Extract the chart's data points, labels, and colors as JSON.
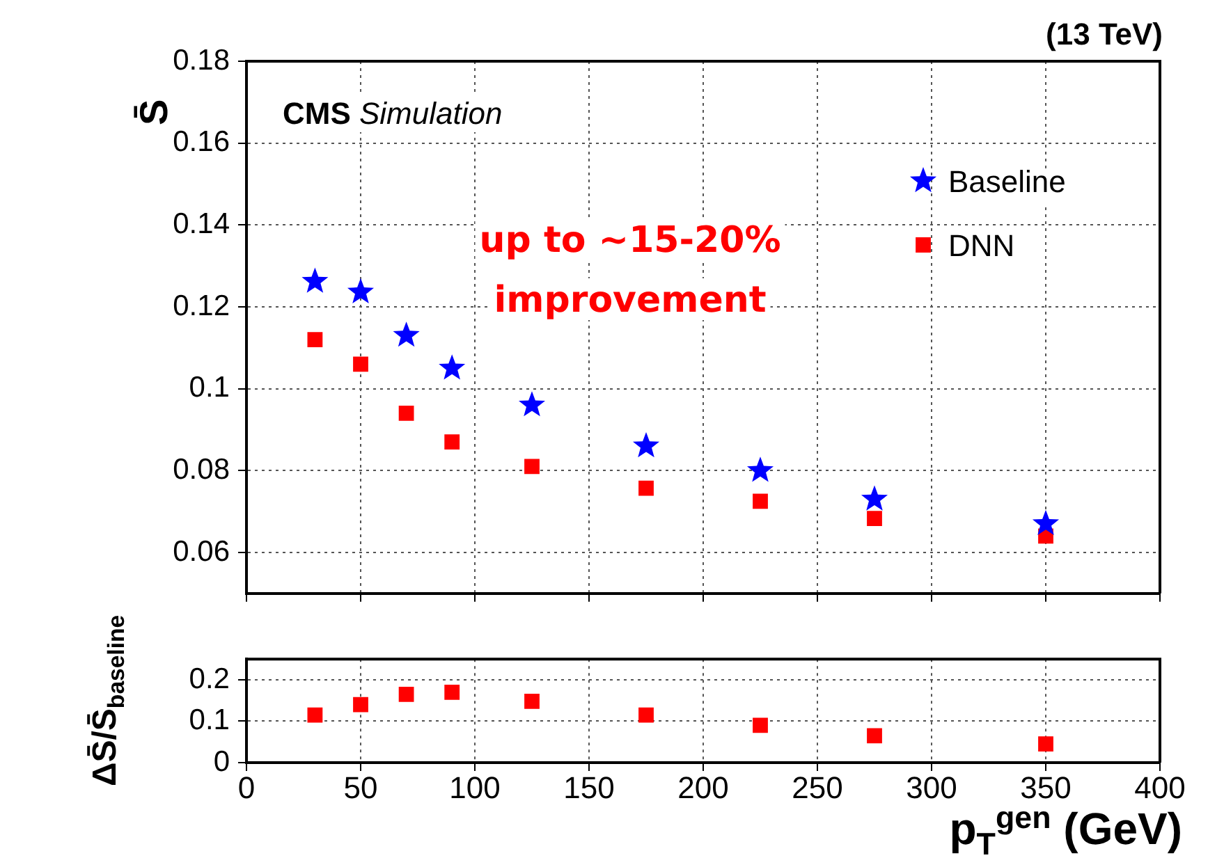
{
  "chart_data": [
    {
      "type": "scatter",
      "title": "(13 TeV)",
      "ylabel": "S̄",
      "annotations": [
        "CMS Simulation",
        "up to ~15-20% improvement"
      ],
      "x": [
        30,
        50,
        70,
        90,
        125,
        175,
        225,
        275,
        350
      ],
      "series": [
        {
          "name": "Baseline",
          "color": "#0000ff",
          "marker": "star",
          "values": [
            0.1262,
            0.1236,
            0.113,
            0.105,
            0.096,
            0.086,
            0.08,
            0.073,
            0.067
          ]
        },
        {
          "name": "DNN",
          "color": "#ff0000",
          "marker": "square",
          "values": [
            0.112,
            0.106,
            0.094,
            0.087,
            0.081,
            0.0757,
            0.0725,
            0.0683,
            0.064
          ]
        }
      ],
      "xlim": [
        0,
        400
      ],
      "xticks": [
        0,
        50,
        100,
        150,
        200,
        250,
        300,
        350,
        400
      ],
      "ylim": [
        0.05,
        0.18
      ],
      "yticks": [
        {
          "value": 0.06,
          "label": "0.06"
        },
        {
          "value": 0.08,
          "label": "0.08"
        },
        {
          "value": 0.1,
          "label": "0.1"
        },
        {
          "value": 0.12,
          "label": "0.12"
        },
        {
          "value": 0.14,
          "label": "0.14"
        },
        {
          "value": 0.16,
          "label": "0.16"
        },
        {
          "value": 0.18,
          "label": "0.18"
        }
      ],
      "grid": true,
      "legend": "top right",
      "tick_labels": "y"
    },
    {
      "type": "scatter",
      "ylabel": "ΔS̄/S̄$_{baseline}$",
      "xlabel": "p$_{T}$$^{gen}$ (GeV)",
      "x": [
        30,
        50,
        70,
        90,
        125,
        175,
        225,
        275,
        350
      ],
      "series": [
        {
          "color": "#ff0000",
          "marker": "square",
          "values": [
            0.115,
            0.14,
            0.165,
            0.17,
            0.148,
            0.115,
            0.09,
            0.065,
            0.045
          ]
        }
      ],
      "xlim": [
        0,
        400
      ],
      "xticks": [
        0,
        50,
        100,
        150,
        200,
        250,
        300,
        350,
        400
      ],
      "ylim": [
        0,
        0.25
      ],
      "yticks": [
        0,
        {
          "value": 0.1,
          "label": "0.1"
        },
        {
          "value": 0.2,
          "label": "0.2"
        }
      ],
      "grid": true
    }
  ]
}
